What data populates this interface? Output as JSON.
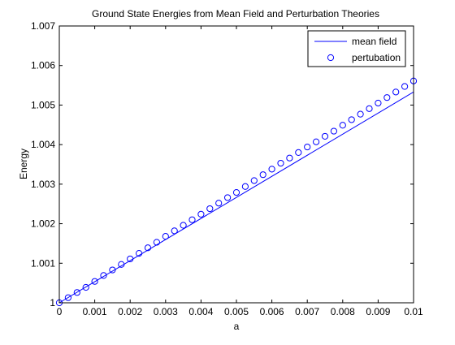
{
  "chart_data": {
    "type": "line",
    "title": "Ground State Energies from Mean Field and Perturbation Theories",
    "xlabel": "a",
    "ylabel": "Energy",
    "xlim": [
      0,
      0.01
    ],
    "ylim": [
      1,
      1.007
    ],
    "xticks": [
      0,
      0.001,
      0.002,
      0.003,
      0.004,
      0.005,
      0.006,
      0.007,
      0.008,
      0.009,
      0.01
    ],
    "xtick_labels": [
      "0",
      "0.001",
      "0.002",
      "0.003",
      "0.004",
      "0.005",
      "0.006",
      "0.007",
      "0.008",
      "0.009",
      "0.01"
    ],
    "yticks": [
      1,
      1.001,
      1.002,
      1.003,
      1.004,
      1.005,
      1.006,
      1.007
    ],
    "ytick_labels": [
      "1",
      "1.001",
      "1.002",
      "1.003",
      "1.004",
      "1.005",
      "1.006",
      "1.007"
    ],
    "grid": false,
    "legend": "top-right",
    "series": [
      {
        "name": "mean field",
        "style": "line",
        "color": "#0000ff",
        "x": [
          0,
          0.01
        ],
        "y": [
          1,
          1.00533
        ]
      },
      {
        "name": "pertubation",
        "style": "circle-markers",
        "color": "#0000ff",
        "x": [
          0,
          0.00025,
          0.0005,
          0.00075,
          0.001,
          0.00125,
          0.0015,
          0.00175,
          0.002,
          0.00225,
          0.0025,
          0.00275,
          0.003,
          0.00325,
          0.0035,
          0.00375,
          0.004,
          0.00425,
          0.0045,
          0.00475,
          0.005,
          0.00525,
          0.0055,
          0.00575,
          0.006,
          0.00625,
          0.0065,
          0.00675,
          0.007,
          0.00725,
          0.0075,
          0.00775,
          0.008,
          0.00825,
          0.0085,
          0.00875,
          0.009,
          0.00925,
          0.0095,
          0.00975,
          0.01
        ],
        "y": [
          1.0,
          1.00013,
          1.00026,
          1.00039,
          1.00054,
          1.00069,
          1.00083,
          1.00097,
          1.00111,
          1.00125,
          1.00139,
          1.00153,
          1.00168,
          1.00182,
          1.00196,
          1.0021,
          1.00224,
          1.00238,
          1.00252,
          1.00266,
          1.00279,
          1.00294,
          1.00309,
          1.00324,
          1.00338,
          1.00353,
          1.00366,
          1.0038,
          1.00394,
          1.00407,
          1.00421,
          1.00434,
          1.00449,
          1.00463,
          1.00477,
          1.00491,
          1.00505,
          1.00519,
          1.00533,
          1.00547,
          1.00561
        ]
      }
    ]
  }
}
